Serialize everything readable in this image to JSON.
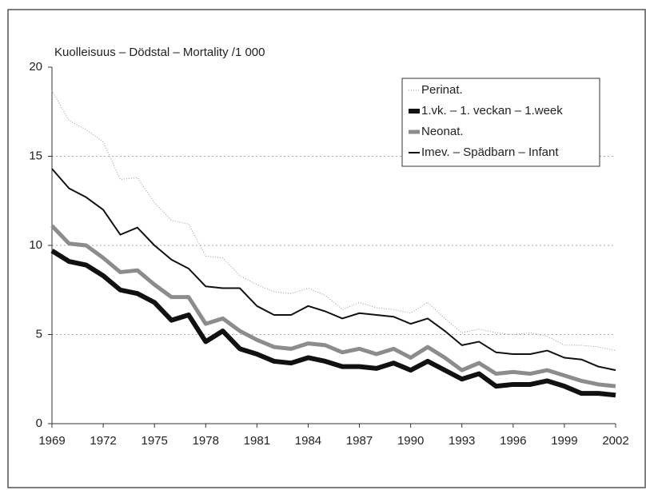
{
  "chart_data": {
    "type": "line",
    "title": "Kuolleisuus – Dödstal – Mortality /1 000",
    "x": [
      1969,
      1970,
      1971,
      1972,
      1973,
      1974,
      1975,
      1976,
      1977,
      1978,
      1979,
      1980,
      1981,
      1982,
      1983,
      1984,
      1985,
      1986,
      1987,
      1988,
      1989,
      1990,
      1991,
      1992,
      1993,
      1994,
      1995,
      1996,
      1997,
      1998,
      1999,
      2000,
      2001,
      2002
    ],
    "xlim": [
      1969,
      2002
    ],
    "xticks": [
      1969,
      1972,
      1975,
      1978,
      1981,
      1984,
      1987,
      1990,
      1993,
      1996,
      1999,
      2002
    ],
    "ylim": [
      0,
      20
    ],
    "yticks": [
      0,
      5,
      10,
      15,
      20
    ],
    "grid": true,
    "legend": "upper right",
    "series": [
      {
        "name": "Perinat.",
        "color": "#999999",
        "linestyle": "dotted",
        "values": [
          18.7,
          17.0,
          16.5,
          15.8,
          13.7,
          13.8,
          12.4,
          11.4,
          11.2,
          9.4,
          9.3,
          8.3,
          7.8,
          7.4,
          7.3,
          7.6,
          7.2,
          6.4,
          6.8,
          6.5,
          6.4,
          6.2,
          6.8,
          5.9,
          5.1,
          5.3,
          5.1,
          5.0,
          5.1,
          4.9,
          4.4,
          4.4,
          4.3,
          4.1
        ]
      },
      {
        "name": "1.vk. – 1. veckan – 1.week",
        "color": "#111111",
        "linestyle": "solid",
        "values": [
          9.7,
          9.1,
          8.9,
          8.3,
          7.5,
          7.3,
          6.8,
          5.8,
          6.1,
          4.6,
          5.2,
          4.2,
          3.9,
          3.5,
          3.4,
          3.7,
          3.5,
          3.2,
          3.2,
          3.1,
          3.4,
          3.0,
          3.5,
          3.0,
          2.5,
          2.8,
          2.1,
          2.2,
          2.2,
          2.4,
          2.1,
          1.7,
          1.7,
          1.6
        ]
      },
      {
        "name": "Neonat.",
        "color": "#8c8c8c",
        "linestyle": "solid",
        "values": [
          11.1,
          10.1,
          10.0,
          9.3,
          8.5,
          8.6,
          7.8,
          7.1,
          7.1,
          5.6,
          5.9,
          5.2,
          4.7,
          4.3,
          4.2,
          4.5,
          4.4,
          4.0,
          4.2,
          3.9,
          4.2,
          3.7,
          4.3,
          3.7,
          3.0,
          3.4,
          2.8,
          2.9,
          2.8,
          3.0,
          2.7,
          2.4,
          2.2,
          2.1
        ]
      },
      {
        "name": "Imev. – Spädbarn – Infant",
        "color": "#111111",
        "linestyle": "solid",
        "values": [
          14.3,
          13.2,
          12.7,
          12.0,
          10.6,
          11.0,
          10.0,
          9.2,
          8.7,
          7.7,
          7.6,
          7.6,
          6.6,
          6.1,
          6.1,
          6.6,
          6.3,
          5.9,
          6.2,
          6.1,
          6.0,
          5.6,
          5.9,
          5.2,
          4.4,
          4.6,
          4.0,
          3.9,
          3.9,
          4.1,
          3.7,
          3.6,
          3.2,
          3.0
        ]
      }
    ]
  }
}
